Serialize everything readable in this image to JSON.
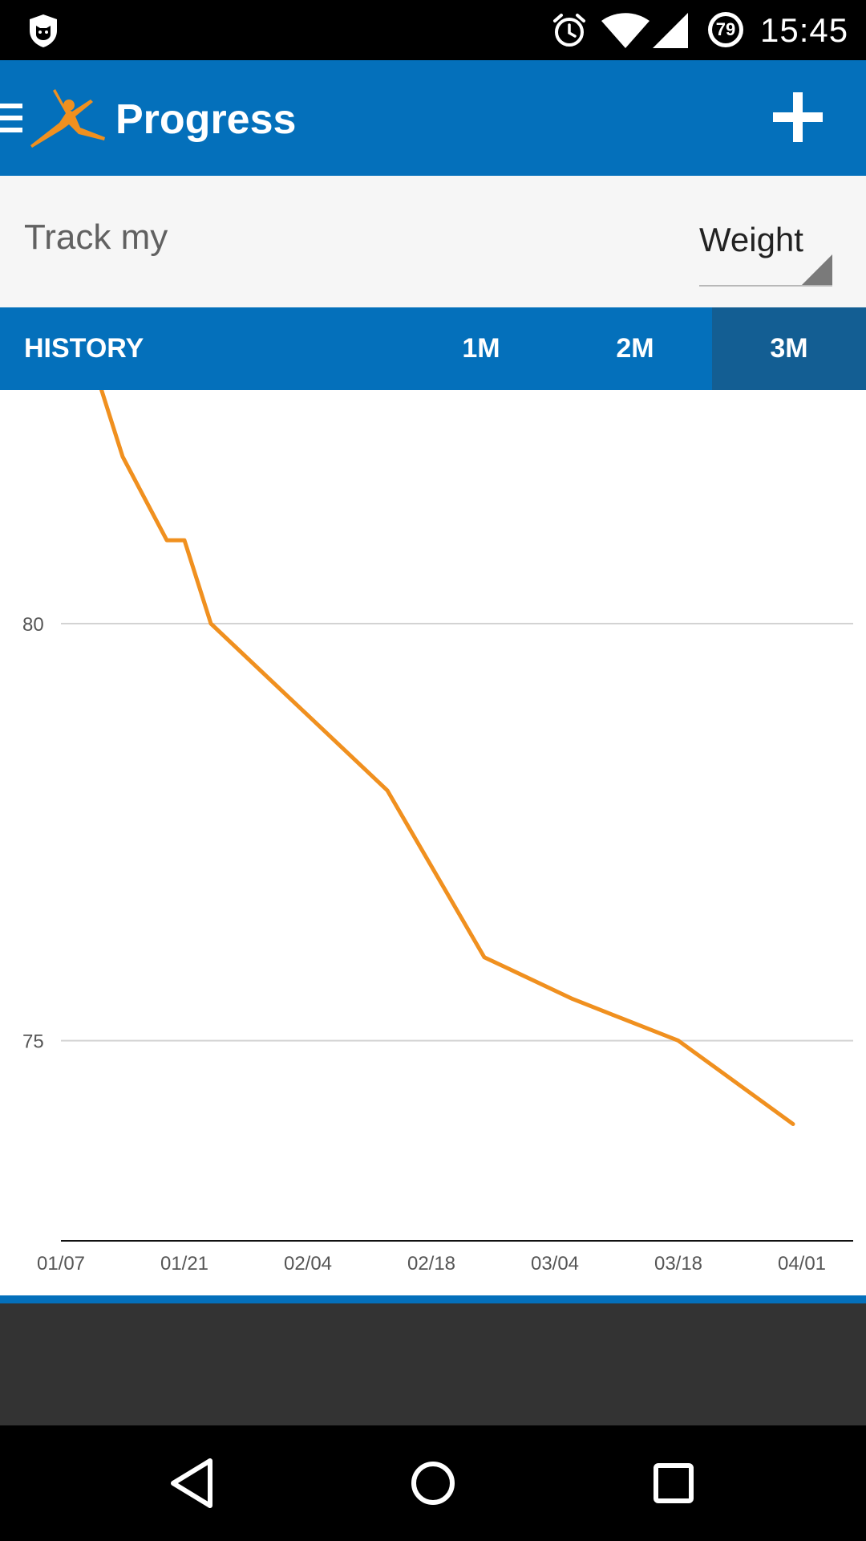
{
  "status_bar": {
    "time": "15:45",
    "battery_level": "79",
    "icons": [
      "shield-icon",
      "alarm-icon",
      "wifi-icon",
      "signal-icon",
      "battery-icon"
    ]
  },
  "app_bar": {
    "title": "Progress",
    "icons": [
      "menu-icon",
      "logo-icon",
      "add-icon"
    ],
    "accent_color": "#0470bb"
  },
  "track": {
    "label": "Track my",
    "selected": "Weight"
  },
  "tabs": [
    {
      "label": "HISTORY",
      "active": false
    },
    {
      "label": "1M",
      "active": false
    },
    {
      "label": "2M",
      "active": false
    },
    {
      "label": "3M",
      "active": true
    }
  ],
  "chart_data": {
    "type": "line",
    "x_tick_labels": [
      "01/07",
      "01/21",
      "02/04",
      "02/18",
      "03/04",
      "03/18",
      "04/01"
    ],
    "y_tick_labels": [
      "80",
      "75"
    ],
    "ylim": [
      72.6,
      82.8
    ],
    "grid": true,
    "line_color": "#f0901f",
    "series": [
      {
        "x": [
          "01/07",
          "01/11",
          "01/14",
          "01/19",
          "01/21",
          "01/24",
          "02/03",
          "02/13",
          "02/24",
          "03/06",
          "03/18",
          "03/31"
        ],
        "values": [
          83,
          83,
          82,
          81,
          81,
          80,
          79,
          78,
          76,
          75.5,
          75,
          74
        ]
      }
    ]
  },
  "nav_bar": {
    "icons": [
      "back-icon",
      "home-icon",
      "recents-icon"
    ]
  }
}
